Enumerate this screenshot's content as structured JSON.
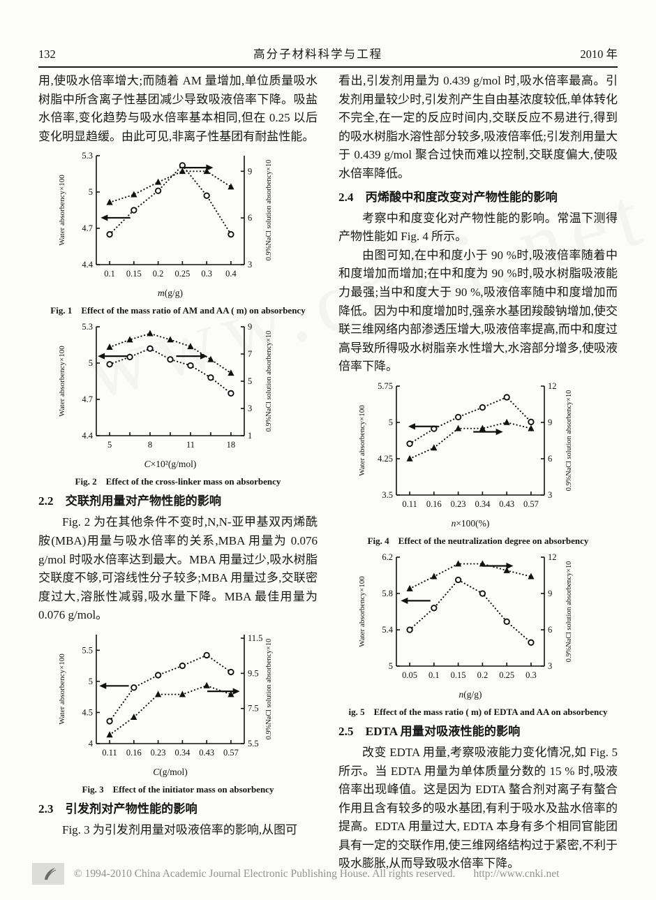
{
  "page": {
    "header": {
      "page_number": "132",
      "journal": "高分子材料科学与工程",
      "year": "2010 年"
    },
    "footer": {
      "copyright": "© 1994-2010 China Academic Journal Electronic Publishing House. All rights reserved.",
      "url": "http://www.cnki.net",
      "logo": "cnki-logo"
    },
    "watermark": "www.cnki.net"
  },
  "left_column": {
    "para_continuation": "用,使吸水倍率增大;而随着 AM 量增加,单位质量吸水树脂中所含离子性基团减少导致吸液倍率下降。吸盐水倍率,变化趋势与吸水倍率基本相同,但在 0.25 以后变化明显趋缓。由此可见,非离子性基团有耐盐性能。",
    "sec22_heading": "2.2　交联剂用量对产物性能的影响",
    "sec22_para": "Fig. 2 为在其他条件不变时,N,N-亚甲基双丙烯酰胺(MBA)用量与吸水倍率的关系,MBA 用量为 0.076 g/mol 时吸水倍率达到最大。MBA 用量过少,吸水树脂交联度不够,可溶线性分子较多;MBA 用量过多,交联密度过大,溶胀性减弱,吸水量下降。MBA 最佳用量为 0.076 g/mol。",
    "sec23_heading": "2.3　引发剂对产物性能的影响",
    "sec23_para": "Fig. 3 为引发剂用量对吸液倍率的影响,从图可"
  },
  "right_column": {
    "para_continuation": "看出,引发剂用量为 0.439 g/mol 时,吸水倍率最高。引发剂用量较少时,引发剂产生自由基浓度较低,单体转化不完全,在一定的反应时间内,交联反应不易进行,得到的吸水树脂水溶性部分较多,吸液倍率低;引发剂用量大于 0.439 g/mol 聚合过快而难以控制,交联度偏大,使吸水倍率降低。",
    "sec24_heading": "2.4　丙烯酸中和度改变对产物性能的影响",
    "sec24_para1": "考察中和度变化对产物性能的影响。常温下测得产物性能如 Fig. 4 所示。",
    "sec24_para2": "由图可知,在中和度小于 90 %时,吸液倍率随着中和度增加而增加;在中和度为 90 %时,吸水树脂吸液能力最强;当中和度大于 90 %,吸液倍率随中和度增加而降低。因为中和度增加时,强亲水基团羧酸钠增加,使交联三维网络内部渗透压增大,吸液倍率提高,而中和度过高导致所得吸水树脂亲水性增大,水溶部分增多,使吸液倍率下降。",
    "sec25_heading": "2.5　EDTA 用量对吸液性能的影响",
    "sec25_para": "改变 EDTA 用量,考察吸液能力变化情况,如 Fig. 5 所示。当 EDTA 用量为单体质量分数的 15 % 时,吸液倍率出现峰值。这是因为 EDTA 螯合剂对离子有螯合作用且含有较多的吸水基团,有利于吸水及盐水倍率的提高。EDTA 用量过大, EDTA 本身有多个相同官能团具有一定的交联作用,使三维网络结构过于紧密,不利于吸水膨胀,从而导致吸水倍率下降。"
  },
  "chart_data": [
    {
      "id": "fig1",
      "type": "line",
      "style": "dotted-markers",
      "caption": "Fig. 1　Effect of the mass ratio of AM and AA ( m) on absorbency",
      "x_tick_labels": [
        "0.1",
        "0.15",
        "0.2",
        "0.25",
        "0.3",
        "0.4"
      ],
      "xlabel": {
        "var": "m",
        "rest": "(g/g)"
      },
      "left_axis": {
        "label": "Water absorbency×100",
        "ticks": [
          4.4,
          4.7,
          5,
          5.3
        ],
        "min": 4.4,
        "max": 5.3
      },
      "right_axis": {
        "label": "0.9%NaCl solution absorbency×10",
        "ticks": [
          3,
          6,
          9
        ],
        "min": 3,
        "max": 10
      },
      "series": [
        {
          "name": "water absorbency",
          "marker": "circle",
          "axis": "left",
          "values": [
            4.65,
            4.85,
            5.01,
            5.22,
            4.97,
            4.65
          ]
        },
        {
          "name": "0.9% NaCl solution absorbency",
          "marker": "triangle",
          "axis": "right",
          "values": [
            7.0,
            7.5,
            8.3,
            9.0,
            9.0,
            8.0
          ]
        }
      ],
      "arrows": [
        {
          "dir": "left",
          "x1": 0.03,
          "x2": 0.23,
          "y": 0.57
        },
        {
          "dir": "right",
          "x1": 0.58,
          "x2": 0.79,
          "y": 0.11
        }
      ]
    },
    {
      "id": "fig2",
      "type": "line",
      "style": "dotted-markers",
      "caption": "Fig. 2　Effect of the cross-linker mass on absorbency",
      "x_tick_labels": [
        "5",
        null,
        "8",
        null,
        "11",
        null,
        "18"
      ],
      "xlabel": {
        "var": "C",
        "rest": "×10²(g/mol)"
      },
      "left_axis": {
        "label": "Water absorbency×100",
        "ticks": [
          4.4,
          4.7,
          5,
          5.3
        ],
        "min": 4.4,
        "max": 5.3
      },
      "right_axis": {
        "label": "0.9%NaCl solution absorbency×10",
        "ticks": [
          1,
          3,
          5,
          7,
          9
        ],
        "min": 1,
        "max": 9
      },
      "series": [
        {
          "name": "water absorbency",
          "marker": "circle",
          "axis": "left",
          "values": [
            4.99,
            5.05,
            5.12,
            5.03,
            4.98,
            4.88,
            4.75
          ]
        },
        {
          "name": "0.9% NaCl solution absorbency",
          "marker": "triangle",
          "axis": "right",
          "values": [
            7.5,
            8.05,
            8.5,
            8.05,
            7.55,
            6.6,
            5.6
          ]
        }
      ],
      "arrows": [
        {
          "dir": "left",
          "x1": 0.01,
          "x2": 0.21,
          "y": 0.27
        },
        {
          "dir": "right",
          "x1": 0.54,
          "x2": 0.75,
          "y": 0.27
        }
      ]
    },
    {
      "id": "fig3",
      "type": "line",
      "style": "dotted-markers",
      "caption": "Fig. 3　Effect of the initiator mass on absorbency",
      "x_tick_labels": [
        "0.11",
        "0.16",
        "0.23",
        "0.34",
        "0.43",
        "0.57"
      ],
      "xlabel": {
        "var": "C",
        "rest": "(g/mol)"
      },
      "left_axis": {
        "label": "Water absorbency×100",
        "ticks": [
          4,
          4.5,
          5,
          5.5
        ],
        "min": 4,
        "max": 5.75
      },
      "right_axis": {
        "label": "0.9%NaCl solution absorbency×10",
        "ticks": [
          5.5,
          7.5,
          9.5,
          11.5
        ],
        "min": 5.5,
        "max": 11.7
      },
      "series": [
        {
          "name": "water absorbency",
          "marker": "circle",
          "axis": "left",
          "values": [
            4.36,
            4.9,
            5.1,
            5.25,
            5.42,
            5.15
          ]
        },
        {
          "name": "0.9% NaCl solution absorbency",
          "marker": "triangle",
          "axis": "right",
          "values": [
            6.0,
            7.0,
            8.3,
            8.3,
            8.8,
            8.3
          ]
        }
      ],
      "arrows": [
        {
          "dir": "left",
          "x1": 0.02,
          "x2": 0.22,
          "y": 0.47
        },
        {
          "dir": "right",
          "x1": 0.75,
          "x2": 0.97,
          "y": 0.52
        }
      ]
    },
    {
      "id": "fig4",
      "type": "line",
      "style": "dotted-markers",
      "caption": "Fig. 4　Effect of the neutralization degree on absorbency",
      "x_tick_labels": [
        "0.11",
        "0.16",
        "0.23",
        "0.34",
        "0.43",
        "0.57"
      ],
      "xlabel": {
        "var": "n",
        "rest": "×100(%)"
      },
      "left_axis": {
        "label": "Water absorbency×100",
        "ticks": [
          3.5,
          4.25,
          5,
          5.75
        ],
        "min": 3.5,
        "max": 5.75
      },
      "right_axis": {
        "label": "0.9%NaCl solution absorbency×10",
        "ticks": [
          3,
          6,
          9,
          12
        ],
        "min": 3,
        "max": 12
      },
      "series": [
        {
          "name": "water absorbency",
          "marker": "circle",
          "axis": "left",
          "values": [
            4.56,
            4.87,
            5.11,
            5.31,
            5.52,
            5.01
          ]
        },
        {
          "name": "0.9% NaCl solution absorbency",
          "marker": "triangle",
          "axis": "right",
          "values": [
            6.0,
            6.9,
            8.5,
            8.5,
            9.0,
            8.5
          ]
        }
      ],
      "arrows": [
        {
          "dir": "left",
          "x1": 0.08,
          "x2": 0.28,
          "y": 0.37
        },
        {
          "dir": "right",
          "x1": 0.52,
          "x2": 0.72,
          "y": 0.42
        }
      ]
    },
    {
      "id": "fig5",
      "type": "line",
      "style": "dotted-markers",
      "caption": "ig. 5　Effect of the mass ratio ( m) of EDTA and AA on absorbency",
      "x_tick_labels": [
        "0.05",
        "0.1",
        "0.15",
        "0.2",
        "0.25",
        "0.3"
      ],
      "xlabel": {
        "var": "n",
        "rest": "(g/g)"
      },
      "left_axis": {
        "label": "Water absorbency×100",
        "ticks": [
          5,
          5.4,
          5.8,
          6.2
        ],
        "min": 5,
        "max": 6.2
      },
      "right_axis": {
        "label": "0.9%NaCl solution absorbency×10",
        "ticks": [
          3,
          6,
          9,
          12
        ],
        "min": 3,
        "max": 12
      },
      "series": [
        {
          "name": "water absorbency",
          "marker": "circle",
          "axis": "left",
          "values": [
            5.4,
            5.64,
            5.95,
            5.8,
            5.49,
            5.26
          ]
        },
        {
          "name": "0.9% NaCl solution absorbency",
          "marker": "triangle",
          "axis": "right",
          "values": [
            9.4,
            10.4,
            11.45,
            11.45,
            10.9,
            10.4
          ]
        }
      ],
      "arrows": [
        {
          "dir": "left",
          "x1": 0.03,
          "x2": 0.23,
          "y": 0.4
        },
        {
          "dir": "right",
          "x1": 0.58,
          "x2": 0.79,
          "y": 0.08
        }
      ]
    }
  ]
}
